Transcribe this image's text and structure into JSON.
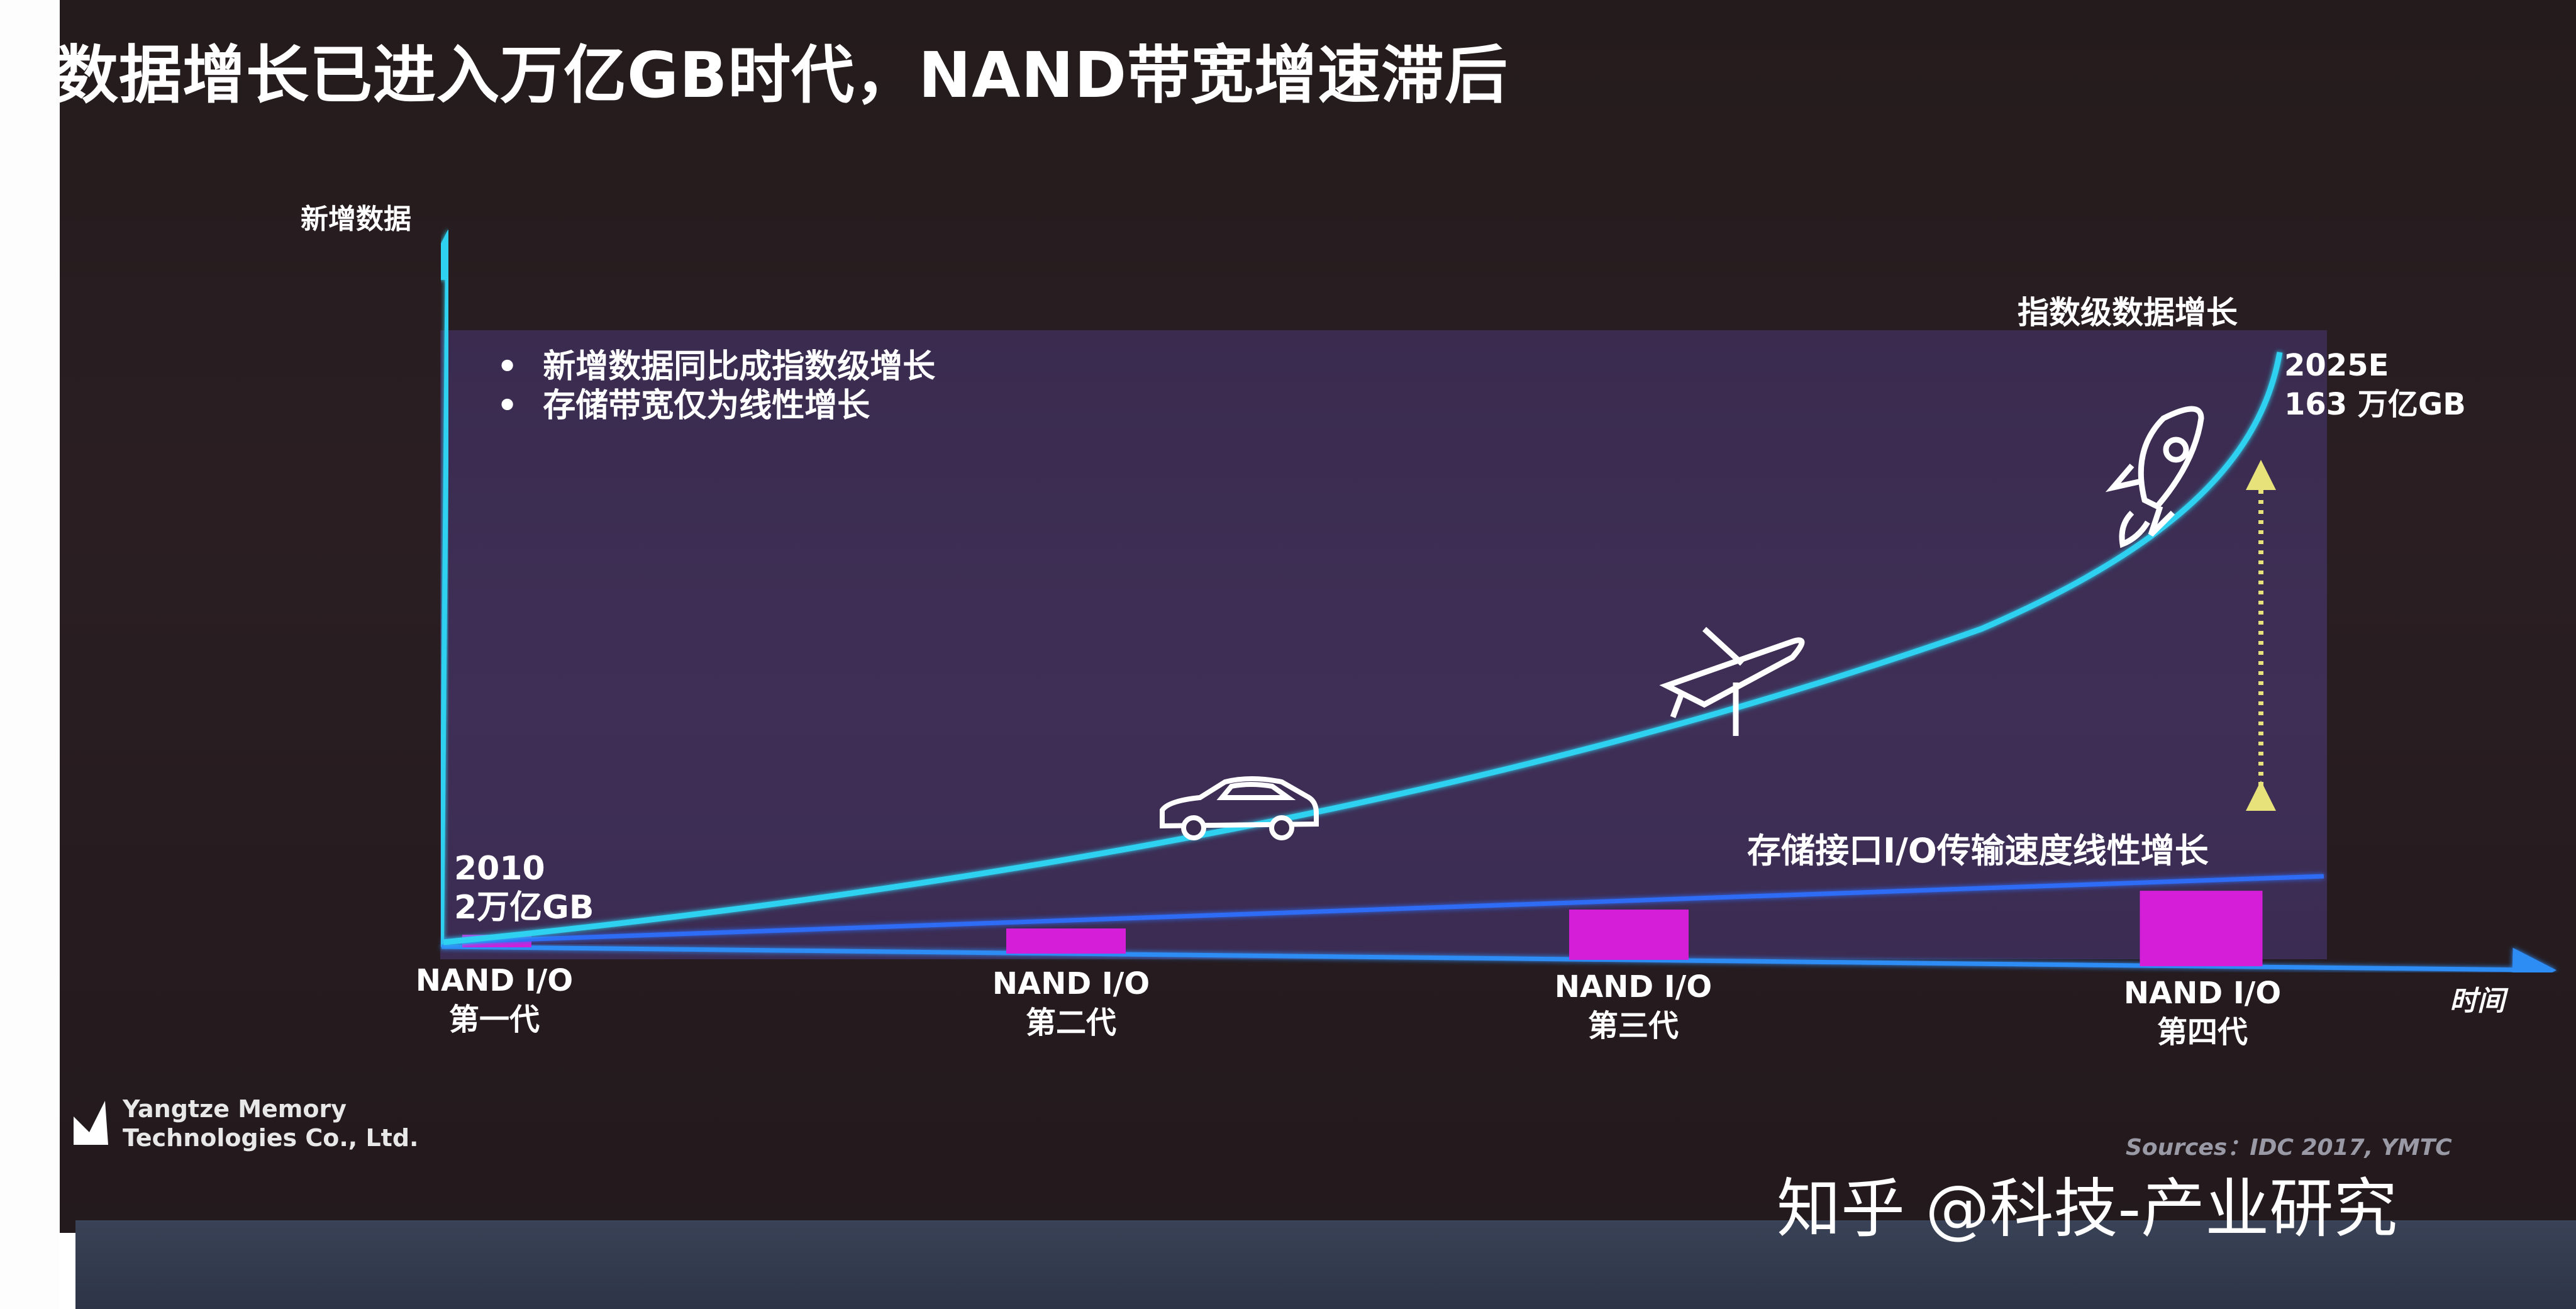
{
  "slide": {
    "title": "数据增长已进入万亿GB时代，NAND带宽增速滞后",
    "bullets": [
      "新增数据同比成指数级增长",
      "存储带宽仅为线性增长"
    ],
    "company": [
      "Yangtze Memory",
      "Technologies Co., Ltd."
    ],
    "sources": "Sources：IDC 2017, YMTC",
    "watermark": "知乎 @科技-产业研究"
  },
  "chart_data": {
    "type": "line",
    "ylabel": "新增数据",
    "xlabel": "时间",
    "categories": [
      "NAND I/O\n第一代",
      "NAND I/O\n第二代",
      "NAND I/O\n第三代",
      "NAND I/O\n第四代"
    ],
    "series": [
      {
        "name": "指数级数据增长",
        "curve": "exponential",
        "start": {
          "year": "2010",
          "value": "2万亿GB"
        },
        "end": {
          "year": "2025E",
          "value": "163 万亿GB"
        }
      },
      {
        "name": "存储接口I/O传输速度线性增长",
        "curve": "linear",
        "relative_io_speed": [
          1,
          1,
          2,
          3
        ]
      }
    ],
    "colors": {
      "data_curve": "#2fd2f0",
      "io_line": "#2e6cf5",
      "io_bar": "#d51ed8"
    },
    "icons": [
      "car-icon",
      "airplane-icon",
      "rocket-icon"
    ]
  }
}
